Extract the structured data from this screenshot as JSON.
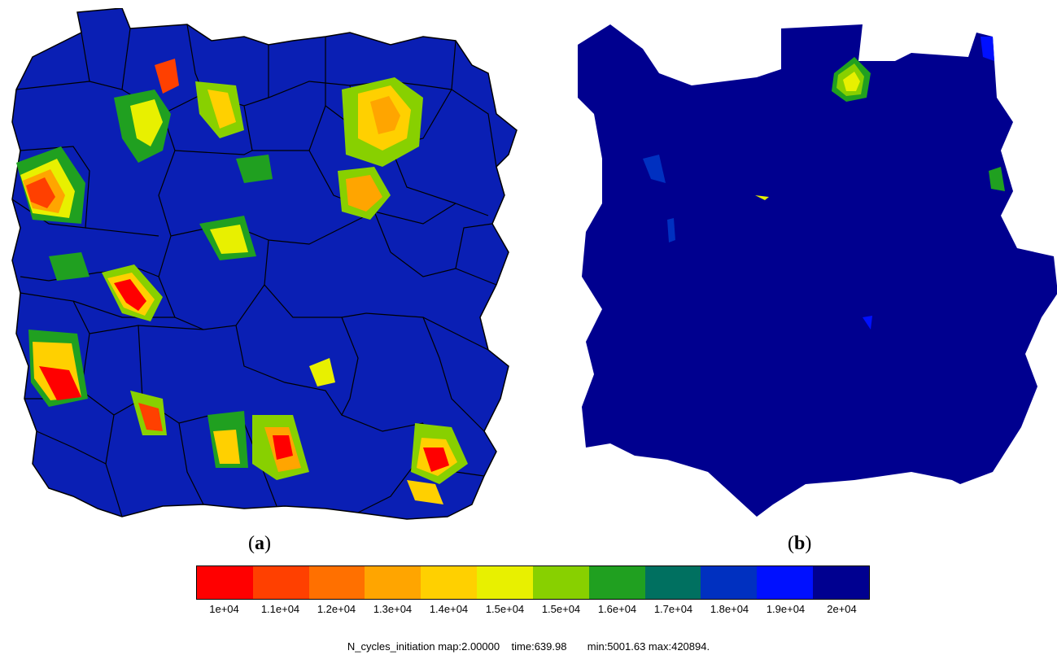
{
  "panels": {
    "a": {
      "label": "a"
    },
    "b": {
      "label": "b"
    }
  },
  "colorbar": {
    "colors": [
      "#ff0000",
      "#ff4000",
      "#ff7000",
      "#ffa500",
      "#ffd000",
      "#e8f000",
      "#88d000",
      "#20a020",
      "#007060",
      "#0030c0",
      "#0010ff",
      "#000090"
    ],
    "ticks": [
      "1e+04",
      "1.1e+04",
      "1.2e+04",
      "1.3e+04",
      "1.4e+04",
      "1.5e+04",
      "1.5e+04",
      "1.6e+04",
      "1.7e+04",
      "1.8e+04",
      "1.9e+04",
      "2e+04"
    ]
  },
  "footer": {
    "text": "N_cycles_initiation map:2.00000    time:639.98       min:5001.63 max:420894."
  },
  "colors": {
    "grain_fill_a": "#0a1fb4",
    "grain_fill_b": "#00008f",
    "grain_edge": "#000000"
  }
}
